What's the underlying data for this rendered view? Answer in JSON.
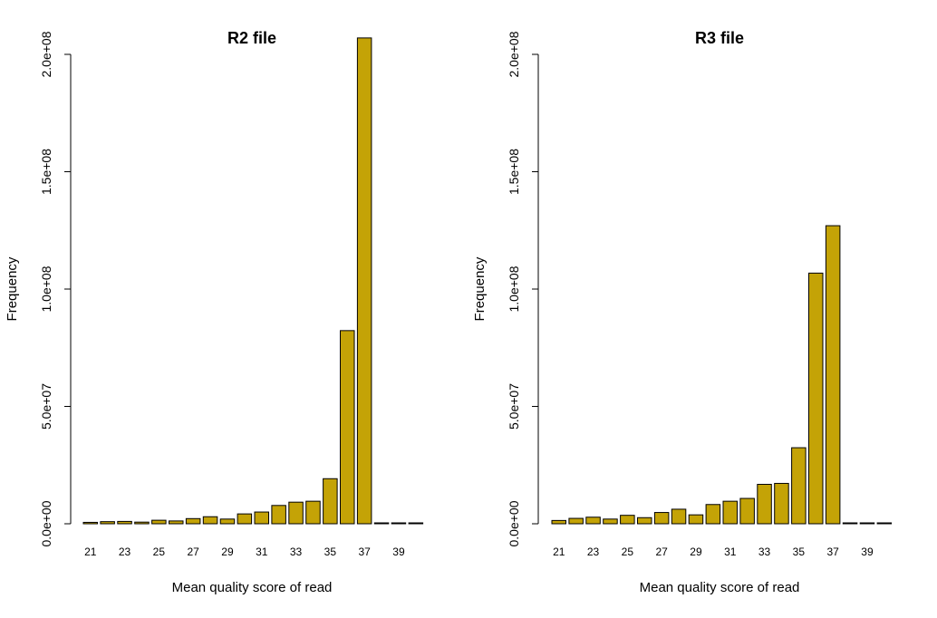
{
  "chart_data": [
    {
      "type": "bar",
      "title": "R2 file",
      "xlabel": "Mean quality score of read",
      "ylabel": "Frequency",
      "ylim": [
        0,
        200000000
      ],
      "yticks": [
        "0.0e+00",
        "5.0e+07",
        "1.0e+08",
        "1.5e+08",
        "2.0e+08"
      ],
      "categories": [
        "21",
        "22",
        "23",
        "24",
        "25",
        "26",
        "27",
        "28",
        "29",
        "30",
        "31",
        "32",
        "33",
        "34",
        "35",
        "36",
        "37",
        "38",
        "39",
        "40"
      ],
      "xtick_labels": [
        "21",
        "23",
        "25",
        "27",
        "29",
        "31",
        "33",
        "35",
        "37",
        "39"
      ],
      "values": [
        600000,
        900000,
        1000000,
        700000,
        1500000,
        1200000,
        2200000,
        3000000,
        2000000,
        4200000,
        5000000,
        7800000,
        9200000,
        9600000,
        19200000,
        82300000,
        207000000,
        200000,
        200000,
        200000
      ],
      "bar_color": "#c4a306"
    },
    {
      "type": "bar",
      "title": "R3 file",
      "xlabel": "Mean quality score of read",
      "ylabel": "Frequency",
      "ylim": [
        0,
        200000000
      ],
      "yticks": [
        "0.0e+00",
        "5.0e+07",
        "1.0e+08",
        "1.5e+08",
        "2.0e+08"
      ],
      "categories": [
        "21",
        "22",
        "23",
        "24",
        "25",
        "26",
        "27",
        "28",
        "29",
        "30",
        "31",
        "32",
        "33",
        "34",
        "35",
        "36",
        "37",
        "38",
        "39",
        "40"
      ],
      "xtick_labels": [
        "21",
        "23",
        "25",
        "27",
        "29",
        "31",
        "33",
        "35",
        "37",
        "39"
      ],
      "values": [
        1400000,
        2300000,
        2800000,
        2000000,
        3600000,
        2600000,
        4800000,
        6200000,
        3800000,
        8200000,
        9600000,
        10800000,
        16800000,
        17200000,
        32400000,
        106800000,
        127000000,
        200000,
        200000,
        200000
      ],
      "bar_color": "#c4a306"
    }
  ]
}
